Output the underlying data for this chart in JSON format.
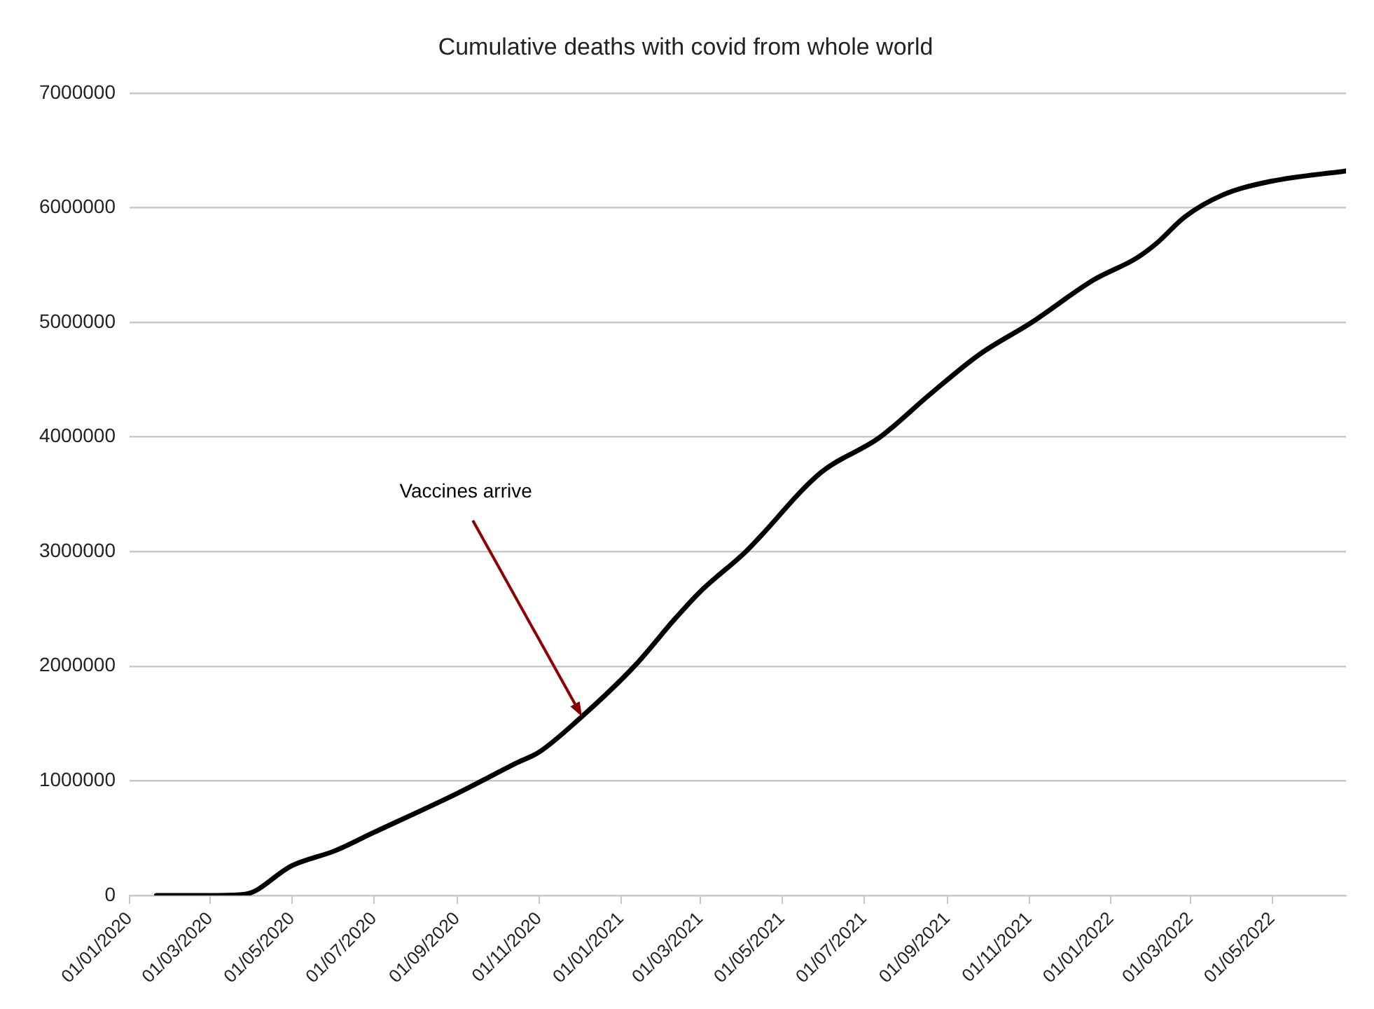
{
  "chart_data": {
    "type": "line",
    "title": "Cumulative deaths with covid from whole world",
    "x": [
      "2020-01-21",
      "2020-03-06",
      "2020-03-27",
      "2020-05-01",
      "2020-06-02",
      "2020-07-01",
      "2020-09-01",
      "2020-10-16",
      "2020-11-01",
      "2020-11-30",
      "2021-01-11",
      "2021-02-10",
      "2021-03-01",
      "2021-04-04",
      "2021-05-30",
      "2021-07-12",
      "2021-08-20",
      "2021-09-25",
      "2021-11-03",
      "2021-12-19",
      "2022-01-20",
      "2022-02-04",
      "2022-02-25",
      "2022-03-25",
      "2022-04-30",
      "2022-06-25"
    ],
    "series": [
      {
        "color": "#000000",
        "values": [
          0,
          0,
          10000,
          260000,
          390000,
          550000,
          890000,
          1160000,
          1250000,
          1530000,
          2000000,
          2410000,
          2650000,
          3000000,
          3690000,
          3990000,
          4380000,
          4720000,
          5000000,
          5370000,
          5560000,
          5690000,
          5920000,
          6110000,
          6230000,
          6320000
        ]
      }
    ],
    "xlim": [
      "2020-01-01",
      "2022-06-25"
    ],
    "xticks": [
      {
        "value": "2020-01-01",
        "label": "01/01/2020"
      },
      {
        "value": "2020-03-01",
        "label": "01/03/2020"
      },
      {
        "value": "2020-05-01",
        "label": "01/05/2020"
      },
      {
        "value": "2020-07-01",
        "label": "01/07/2020"
      },
      {
        "value": "2020-09-01",
        "label": "01/09/2020"
      },
      {
        "value": "2020-11-01",
        "label": "01/11/2020"
      },
      {
        "value": "2021-01-01",
        "label": "01/01/2021"
      },
      {
        "value": "2021-03-01",
        "label": "01/03/2021"
      },
      {
        "value": "2021-05-01",
        "label": "01/05/2021"
      },
      {
        "value": "2021-07-01",
        "label": "01/07/2021"
      },
      {
        "value": "2021-09-01",
        "label": "01/09/2021"
      },
      {
        "value": "2021-11-01",
        "label": "01/11/2021"
      },
      {
        "value": "2022-01-01",
        "label": "01/01/2022"
      },
      {
        "value": "2022-03-01",
        "label": "01/03/2022"
      },
      {
        "value": "2022-05-01",
        "label": "01/05/2022"
      }
    ],
    "ylim": [
      0,
      7000000
    ],
    "yticks": [
      0,
      1000000,
      2000000,
      3000000,
      4000000,
      5000000,
      6000000,
      7000000
    ],
    "grid": "y",
    "marker": "none",
    "line_style": "solid",
    "annotations": [
      {
        "text": "Vaccines arrive",
        "x": "2020-12-03",
        "y": 1560000
      }
    ]
  }
}
